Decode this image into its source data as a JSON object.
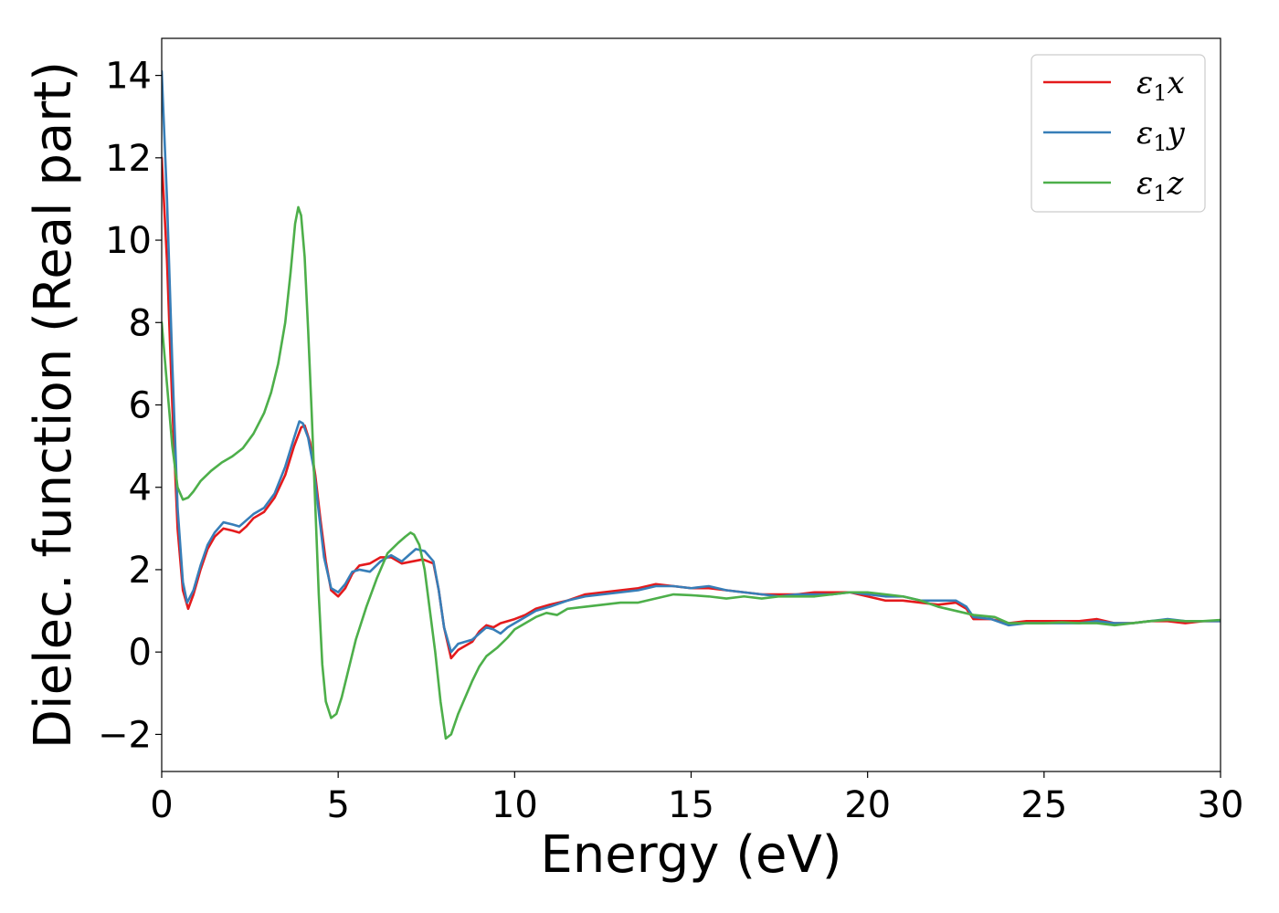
{
  "chart_data": {
    "type": "line",
    "title": "",
    "xlabel": "Energy (eV)",
    "ylabel": "Dielec. function (Real part)",
    "xlim": [
      0,
      30
    ],
    "ylim": [
      -2.9,
      14.9
    ],
    "x_ticks": [
      0,
      5,
      10,
      15,
      20,
      25,
      30
    ],
    "x_tick_labels": [
      "0",
      "5",
      "10",
      "15",
      "20",
      "25",
      "30"
    ],
    "y_ticks": [
      -2,
      0,
      2,
      4,
      6,
      8,
      10,
      12,
      14
    ],
    "y_tick_labels": [
      "−2",
      "0",
      "2",
      "4",
      "6",
      "8",
      "10",
      "12",
      "14"
    ],
    "grid": false,
    "legend_position": "top-right",
    "series": [
      {
        "name": "ε₁x",
        "legend_base": "ε",
        "legend_sub": "1",
        "legend_suffix": "x",
        "color": "#e41a1c",
        "points": [
          [
            0,
            12.0
          ],
          [
            0.15,
            9.5
          ],
          [
            0.3,
            6.0
          ],
          [
            0.45,
            3.0
          ],
          [
            0.6,
            1.5
          ],
          [
            0.75,
            1.05
          ],
          [
            0.9,
            1.4
          ],
          [
            1.1,
            2.0
          ],
          [
            1.3,
            2.5
          ],
          [
            1.5,
            2.8
          ],
          [
            1.75,
            3.0
          ],
          [
            2.0,
            2.95
          ],
          [
            2.2,
            2.9
          ],
          [
            2.4,
            3.05
          ],
          [
            2.6,
            3.25
          ],
          [
            2.9,
            3.4
          ],
          [
            3.2,
            3.75
          ],
          [
            3.5,
            4.3
          ],
          [
            3.75,
            5.0
          ],
          [
            3.95,
            5.45
          ],
          [
            4.05,
            5.5
          ],
          [
            4.2,
            5.1
          ],
          [
            4.35,
            4.3
          ],
          [
            4.5,
            3.2
          ],
          [
            4.65,
            2.2
          ],
          [
            4.8,
            1.5
          ],
          [
            5.0,
            1.35
          ],
          [
            5.2,
            1.55
          ],
          [
            5.4,
            1.9
          ],
          [
            5.6,
            2.1
          ],
          [
            5.9,
            2.15
          ],
          [
            6.2,
            2.3
          ],
          [
            6.5,
            2.3
          ],
          [
            6.8,
            2.15
          ],
          [
            7.1,
            2.2
          ],
          [
            7.4,
            2.25
          ],
          [
            7.7,
            2.15
          ],
          [
            7.85,
            1.5
          ],
          [
            8.0,
            0.6
          ],
          [
            8.2,
            -0.15
          ],
          [
            8.4,
            0.05
          ],
          [
            8.6,
            0.15
          ],
          [
            8.8,
            0.25
          ],
          [
            9.0,
            0.5
          ],
          [
            9.2,
            0.65
          ],
          [
            9.4,
            0.6
          ],
          [
            9.6,
            0.7
          ],
          [
            9.8,
            0.75
          ],
          [
            10.0,
            0.8
          ],
          [
            10.3,
            0.9
          ],
          [
            10.6,
            1.05
          ],
          [
            11.0,
            1.15
          ],
          [
            11.5,
            1.25
          ],
          [
            12.0,
            1.4
          ],
          [
            12.5,
            1.45
          ],
          [
            13.0,
            1.5
          ],
          [
            13.5,
            1.55
          ],
          [
            14.0,
            1.65
          ],
          [
            14.5,
            1.6
          ],
          [
            15.0,
            1.55
          ],
          [
            15.5,
            1.55
          ],
          [
            16.0,
            1.5
          ],
          [
            16.5,
            1.45
          ],
          [
            17.0,
            1.4
          ],
          [
            17.5,
            1.4
          ],
          [
            18.0,
            1.4
          ],
          [
            18.5,
            1.45
          ],
          [
            19.0,
            1.45
          ],
          [
            19.5,
            1.45
          ],
          [
            20.0,
            1.35
          ],
          [
            20.5,
            1.25
          ],
          [
            21.0,
            1.25
          ],
          [
            21.5,
            1.2
          ],
          [
            22.0,
            1.15
          ],
          [
            22.5,
            1.2
          ],
          [
            22.8,
            1.05
          ],
          [
            23.0,
            0.8
          ],
          [
            23.5,
            0.8
          ],
          [
            24.0,
            0.7
          ],
          [
            24.5,
            0.75
          ],
          [
            25.0,
            0.75
          ],
          [
            25.5,
            0.75
          ],
          [
            26.0,
            0.75
          ],
          [
            26.5,
            0.8
          ],
          [
            27.0,
            0.7
          ],
          [
            27.5,
            0.7
          ],
          [
            28.0,
            0.75
          ],
          [
            28.5,
            0.75
          ],
          [
            29.0,
            0.7
          ],
          [
            29.5,
            0.75
          ],
          [
            30.0,
            0.75
          ]
        ]
      },
      {
        "name": "ε₁y",
        "legend_base": "ε",
        "legend_sub": "1",
        "legend_suffix": "y",
        "color": "#377eb8",
        "points": [
          [
            0,
            14.1
          ],
          [
            0.15,
            11.0
          ],
          [
            0.3,
            7.0
          ],
          [
            0.45,
            3.5
          ],
          [
            0.6,
            1.7
          ],
          [
            0.72,
            1.2
          ],
          [
            0.9,
            1.5
          ],
          [
            1.1,
            2.1
          ],
          [
            1.3,
            2.6
          ],
          [
            1.5,
            2.9
          ],
          [
            1.75,
            3.15
          ],
          [
            2.0,
            3.1
          ],
          [
            2.2,
            3.05
          ],
          [
            2.4,
            3.2
          ],
          [
            2.6,
            3.35
          ],
          [
            2.9,
            3.5
          ],
          [
            3.2,
            3.85
          ],
          [
            3.5,
            4.5
          ],
          [
            3.75,
            5.2
          ],
          [
            3.9,
            5.6
          ],
          [
            4.0,
            5.55
          ],
          [
            4.15,
            5.2
          ],
          [
            4.3,
            4.5
          ],
          [
            4.45,
            3.4
          ],
          [
            4.6,
            2.3
          ],
          [
            4.8,
            1.55
          ],
          [
            5.0,
            1.45
          ],
          [
            5.2,
            1.65
          ],
          [
            5.4,
            1.95
          ],
          [
            5.6,
            2.0
          ],
          [
            5.9,
            1.95
          ],
          [
            6.2,
            2.2
          ],
          [
            6.5,
            2.35
          ],
          [
            6.8,
            2.2
          ],
          [
            7.0,
            2.35
          ],
          [
            7.2,
            2.5
          ],
          [
            7.45,
            2.45
          ],
          [
            7.7,
            2.2
          ],
          [
            7.85,
            1.5
          ],
          [
            8.0,
            0.6
          ],
          [
            8.2,
            0.0
          ],
          [
            8.4,
            0.2
          ],
          [
            8.6,
            0.25
          ],
          [
            8.8,
            0.3
          ],
          [
            9.0,
            0.45
          ],
          [
            9.2,
            0.6
          ],
          [
            9.4,
            0.55
          ],
          [
            9.6,
            0.45
          ],
          [
            9.8,
            0.6
          ],
          [
            10.0,
            0.7
          ],
          [
            10.3,
            0.85
          ],
          [
            10.6,
            1.0
          ],
          [
            11.0,
            1.1
          ],
          [
            11.5,
            1.25
          ],
          [
            12.0,
            1.35
          ],
          [
            12.5,
            1.4
          ],
          [
            13.0,
            1.45
          ],
          [
            13.5,
            1.5
          ],
          [
            14.0,
            1.6
          ],
          [
            14.5,
            1.6
          ],
          [
            15.0,
            1.55
          ],
          [
            15.5,
            1.6
          ],
          [
            16.0,
            1.5
          ],
          [
            16.5,
            1.45
          ],
          [
            17.0,
            1.4
          ],
          [
            17.5,
            1.35
          ],
          [
            18.0,
            1.4
          ],
          [
            18.5,
            1.4
          ],
          [
            19.0,
            1.4
          ],
          [
            19.5,
            1.45
          ],
          [
            20.0,
            1.4
          ],
          [
            20.5,
            1.35
          ],
          [
            21.0,
            1.35
          ],
          [
            21.5,
            1.25
          ],
          [
            22.0,
            1.25
          ],
          [
            22.5,
            1.25
          ],
          [
            22.8,
            1.1
          ],
          [
            23.0,
            0.85
          ],
          [
            23.5,
            0.8
          ],
          [
            24.0,
            0.65
          ],
          [
            24.5,
            0.7
          ],
          [
            25.0,
            0.7
          ],
          [
            25.5,
            0.7
          ],
          [
            26.0,
            0.7
          ],
          [
            26.5,
            0.75
          ],
          [
            27.0,
            0.7
          ],
          [
            27.5,
            0.7
          ],
          [
            28.0,
            0.75
          ],
          [
            28.5,
            0.8
          ],
          [
            29.0,
            0.75
          ],
          [
            29.5,
            0.75
          ],
          [
            30.0,
            0.75
          ]
        ]
      },
      {
        "name": "ε₁z",
        "legend_base": "ε",
        "legend_sub": "1",
        "legend_suffix": "z",
        "color": "#4daf4a",
        "points": [
          [
            0,
            8.0
          ],
          [
            0.15,
            6.5
          ],
          [
            0.3,
            5.0
          ],
          [
            0.45,
            4.0
          ],
          [
            0.6,
            3.7
          ],
          [
            0.75,
            3.75
          ],
          [
            0.9,
            3.9
          ],
          [
            1.1,
            4.15
          ],
          [
            1.4,
            4.4
          ],
          [
            1.7,
            4.6
          ],
          [
            2.0,
            4.75
          ],
          [
            2.3,
            4.95
          ],
          [
            2.6,
            5.3
          ],
          [
            2.9,
            5.8
          ],
          [
            3.1,
            6.3
          ],
          [
            3.3,
            7.0
          ],
          [
            3.5,
            8.0
          ],
          [
            3.65,
            9.2
          ],
          [
            3.78,
            10.4
          ],
          [
            3.87,
            10.8
          ],
          [
            3.95,
            10.6
          ],
          [
            4.05,
            9.6
          ],
          [
            4.15,
            7.8
          ],
          [
            4.25,
            5.8
          ],
          [
            4.35,
            3.6
          ],
          [
            4.45,
            1.4
          ],
          [
            4.55,
            -0.3
          ],
          [
            4.65,
            -1.2
          ],
          [
            4.8,
            -1.6
          ],
          [
            4.95,
            -1.5
          ],
          [
            5.1,
            -1.1
          ],
          [
            5.3,
            -0.4
          ],
          [
            5.5,
            0.3
          ],
          [
            5.8,
            1.1
          ],
          [
            6.1,
            1.8
          ],
          [
            6.4,
            2.4
          ],
          [
            6.7,
            2.65
          ],
          [
            6.9,
            2.8
          ],
          [
            7.05,
            2.9
          ],
          [
            7.15,
            2.85
          ],
          [
            7.3,
            2.6
          ],
          [
            7.45,
            2.0
          ],
          [
            7.6,
            1.0
          ],
          [
            7.75,
            0.0
          ],
          [
            7.9,
            -1.2
          ],
          [
            8.05,
            -2.1
          ],
          [
            8.2,
            -2.0
          ],
          [
            8.4,
            -1.5
          ],
          [
            8.6,
            -1.1
          ],
          [
            8.8,
            -0.7
          ],
          [
            9.0,
            -0.35
          ],
          [
            9.2,
            -0.1
          ],
          [
            9.5,
            0.1
          ],
          [
            9.8,
            0.35
          ],
          [
            10.0,
            0.55
          ],
          [
            10.3,
            0.7
          ],
          [
            10.6,
            0.85
          ],
          [
            10.9,
            0.95
          ],
          [
            11.2,
            0.9
          ],
          [
            11.5,
            1.05
          ],
          [
            12.0,
            1.1
          ],
          [
            12.5,
            1.15
          ],
          [
            13.0,
            1.2
          ],
          [
            13.5,
            1.2
          ],
          [
            14.0,
            1.3
          ],
          [
            14.5,
            1.4
          ],
          [
            15.0,
            1.38
          ],
          [
            15.5,
            1.35
          ],
          [
            16.0,
            1.3
          ],
          [
            16.5,
            1.35
          ],
          [
            17.0,
            1.3
          ],
          [
            17.5,
            1.35
          ],
          [
            18.0,
            1.35
          ],
          [
            18.5,
            1.35
          ],
          [
            19.0,
            1.4
          ],
          [
            19.5,
            1.45
          ],
          [
            20.0,
            1.45
          ],
          [
            20.5,
            1.4
          ],
          [
            21.0,
            1.35
          ],
          [
            21.5,
            1.25
          ],
          [
            22.0,
            1.1
          ],
          [
            22.5,
            1.0
          ],
          [
            23.0,
            0.9
          ],
          [
            23.6,
            0.85
          ],
          [
            24.0,
            0.7
          ],
          [
            24.5,
            0.7
          ],
          [
            25.0,
            0.7
          ],
          [
            25.5,
            0.72
          ],
          [
            26.0,
            0.7
          ],
          [
            26.5,
            0.7
          ],
          [
            27.0,
            0.65
          ],
          [
            27.5,
            0.7
          ],
          [
            28.0,
            0.75
          ],
          [
            28.5,
            0.78
          ],
          [
            29.0,
            0.75
          ],
          [
            29.5,
            0.75
          ],
          [
            30.0,
            0.78
          ]
        ]
      }
    ]
  }
}
